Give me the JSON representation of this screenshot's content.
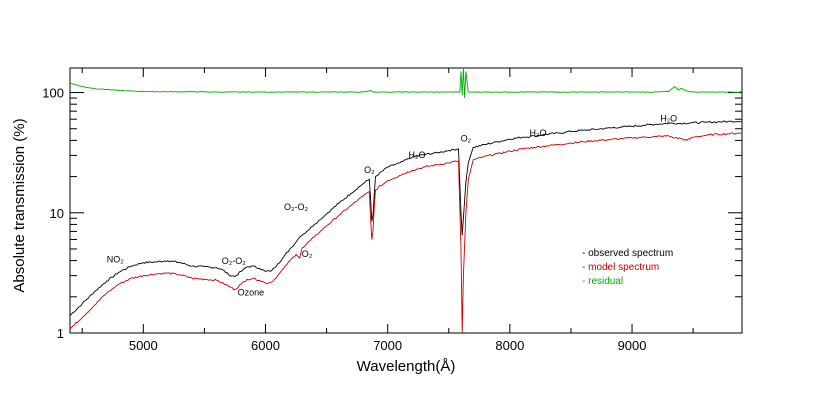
{
  "chart_data": {
    "type": "line",
    "xlabel": "Wavelength(Å)",
    "ylabel": "Absolute transmission (%)",
    "xlim": [
      4400,
      9900
    ],
    "ylim": [
      1,
      160
    ],
    "yscale": "log",
    "x_ticks": [
      5000,
      6000,
      7000,
      8000,
      9000
    ],
    "y_ticks": [
      1,
      10,
      100
    ],
    "x_tick_labels": [
      "5000",
      "6000",
      "7000",
      "8000",
      "9000"
    ],
    "y_tick_labels": [
      "1",
      "10",
      "100"
    ],
    "legend": {
      "position": "lower-right",
      "entries": [
        {
          "text": "- observed spectrum",
          "color": "#000000"
        },
        {
          "text": "- model spectrum",
          "color": "#cc0000"
        },
        {
          "text": "- residual",
          "color": "#00aa00"
        }
      ]
    },
    "series": [
      {
        "name": "observed spectrum",
        "color": "#000000",
        "points": [
          [
            4400,
            1.4
          ],
          [
            4500,
            1.75
          ],
          [
            4600,
            2.2
          ],
          [
            4700,
            2.7
          ],
          [
            4800,
            3.2
          ],
          [
            4900,
            3.6
          ],
          [
            5000,
            3.85
          ],
          [
            5100,
            3.9
          ],
          [
            5200,
            4.0
          ],
          [
            5300,
            3.85
          ],
          [
            5400,
            3.6
          ],
          [
            5500,
            3.55
          ],
          [
            5600,
            3.5
          ],
          [
            5650,
            3.35
          ],
          [
            5700,
            3.05
          ],
          [
            5750,
            2.95
          ],
          [
            5800,
            3.25
          ],
          [
            5850,
            3.55
          ],
          [
            5900,
            3.6
          ],
          [
            5950,
            3.45
          ],
          [
            6000,
            3.25
          ],
          [
            6050,
            3.3
          ],
          [
            6100,
            3.75
          ],
          [
            6150,
            4.3
          ],
          [
            6200,
            5.0
          ],
          [
            6250,
            5.7
          ],
          [
            6280,
            6.3
          ],
          [
            6300,
            6.5
          ],
          [
            6400,
            8.0
          ],
          [
            6500,
            9.8
          ],
          [
            6600,
            12.0
          ],
          [
            6700,
            14.5
          ],
          [
            6800,
            17.5
          ],
          [
            6850,
            19.0
          ],
          [
            6860,
            13.0
          ],
          [
            6870,
            8.5
          ],
          [
            6880,
            9.5
          ],
          [
            6890,
            14.0
          ],
          [
            6900,
            20.0
          ],
          [
            7000,
            24.0
          ],
          [
            7100,
            26.0
          ],
          [
            7200,
            29.0
          ],
          [
            7300,
            30.5
          ],
          [
            7400,
            31.5
          ],
          [
            7500,
            33.0
          ],
          [
            7580,
            34.0
          ],
          [
            7600,
            10.0
          ],
          [
            7610,
            6.5
          ],
          [
            7620,
            9.0
          ],
          [
            7640,
            18.0
          ],
          [
            7660,
            26.0
          ],
          [
            7700,
            35.0
          ],
          [
            7800,
            37.0
          ],
          [
            7900,
            39.0
          ],
          [
            8000,
            41.0
          ],
          [
            8100,
            42.5
          ],
          [
            8200,
            43.5
          ],
          [
            8300,
            45.0
          ],
          [
            8400,
            46.0
          ],
          [
            8500,
            47.5
          ],
          [
            8600,
            48.5
          ],
          [
            8700,
            49.5
          ],
          [
            8800,
            50.5
          ],
          [
            8900,
            51.5
          ],
          [
            9000,
            52.5
          ],
          [
            9100,
            53.5
          ],
          [
            9200,
            54.5
          ],
          [
            9300,
            55.5
          ],
          [
            9400,
            55.5
          ],
          [
            9500,
            56.0
          ],
          [
            9600,
            56.5
          ],
          [
            9700,
            57.0
          ],
          [
            9800,
            57.5
          ],
          [
            9900,
            58.0
          ]
        ]
      },
      {
        "name": "model spectrum",
        "color": "#cc0000",
        "points": [
          [
            4400,
            1.08
          ],
          [
            4500,
            1.35
          ],
          [
            4600,
            1.7
          ],
          [
            4700,
            2.15
          ],
          [
            4800,
            2.55
          ],
          [
            4900,
            2.85
          ],
          [
            5000,
            3.0
          ],
          [
            5100,
            3.1
          ],
          [
            5200,
            3.15
          ],
          [
            5300,
            3.05
          ],
          [
            5400,
            2.85
          ],
          [
            5500,
            2.8
          ],
          [
            5600,
            2.75
          ],
          [
            5700,
            2.45
          ],
          [
            5750,
            2.3
          ],
          [
            5800,
            2.55
          ],
          [
            5850,
            2.8
          ],
          [
            5900,
            2.85
          ],
          [
            5950,
            2.75
          ],
          [
            6000,
            2.6
          ],
          [
            6050,
            2.65
          ],
          [
            6100,
            3.0
          ],
          [
            6150,
            3.45
          ],
          [
            6200,
            4.0
          ],
          [
            6250,
            4.5
          ],
          [
            6280,
            4.2
          ],
          [
            6300,
            5.1
          ],
          [
            6400,
            6.3
          ],
          [
            6500,
            7.8
          ],
          [
            6600,
            9.5
          ],
          [
            6700,
            11.5
          ],
          [
            6800,
            13.8
          ],
          [
            6850,
            15.0
          ],
          [
            6860,
            9.0
          ],
          [
            6870,
            6.0
          ],
          [
            6880,
            7.0
          ],
          [
            6890,
            11.0
          ],
          [
            6900,
            15.5
          ],
          [
            7000,
            18.5
          ],
          [
            7100,
            20.5
          ],
          [
            7200,
            22.5
          ],
          [
            7300,
            24.0
          ],
          [
            7400,
            25.0
          ],
          [
            7500,
            26.0
          ],
          [
            7580,
            27.0
          ],
          [
            7600,
            5.0
          ],
          [
            7610,
            1.0
          ],
          [
            7620,
            3.0
          ],
          [
            7640,
            10.0
          ],
          [
            7660,
            19.0
          ],
          [
            7700,
            27.5
          ],
          [
            7800,
            29.5
          ],
          [
            7900,
            31.0
          ],
          [
            8000,
            32.5
          ],
          [
            8100,
            34.0
          ],
          [
            8200,
            35.0
          ],
          [
            8300,
            36.0
          ],
          [
            8400,
            37.0
          ],
          [
            8500,
            38.0
          ],
          [
            8600,
            39.0
          ],
          [
            8700,
            39.8
          ],
          [
            8800,
            40.5
          ],
          [
            8900,
            41.2
          ],
          [
            9000,
            42.0
          ],
          [
            9100,
            42.5
          ],
          [
            9200,
            43.0
          ],
          [
            9300,
            43.5
          ],
          [
            9350,
            42.0
          ],
          [
            9400,
            41.5
          ],
          [
            9450,
            40.0
          ],
          [
            9500,
            42.5
          ],
          [
            9600,
            44.0
          ],
          [
            9700,
            45.0
          ],
          [
            9800,
            45.5
          ],
          [
            9900,
            46.0
          ]
        ]
      },
      {
        "name": "residual",
        "color": "#00aa00",
        "points": [
          [
            4400,
            120
          ],
          [
            4500,
            112
          ],
          [
            4600,
            108
          ],
          [
            4700,
            106
          ],
          [
            4800,
            104
          ],
          [
            4900,
            103
          ],
          [
            5000,
            102
          ],
          [
            5200,
            101.5
          ],
          [
            5400,
            101.5
          ],
          [
            5600,
            101
          ],
          [
            5800,
            101
          ],
          [
            6000,
            101
          ],
          [
            6200,
            101
          ],
          [
            6400,
            101
          ],
          [
            6600,
            101
          ],
          [
            6800,
            101
          ],
          [
            6860,
            104
          ],
          [
            6880,
            101
          ],
          [
            7000,
            101
          ],
          [
            7200,
            101
          ],
          [
            7400,
            101
          ],
          [
            7550,
            101
          ],
          [
            7590,
            101
          ],
          [
            7600,
            150
          ],
          [
            7610,
            95
          ],
          [
            7620,
            160
          ],
          [
            7630,
            90
          ],
          [
            7640,
            150
          ],
          [
            7660,
            101
          ],
          [
            7800,
            101
          ],
          [
            8000,
            101
          ],
          [
            8200,
            101
          ],
          [
            8400,
            101
          ],
          [
            8600,
            101
          ],
          [
            8800,
            101
          ],
          [
            9000,
            101
          ],
          [
            9200,
            101
          ],
          [
            9300,
            102
          ],
          [
            9350,
            112
          ],
          [
            9380,
            105
          ],
          [
            9400,
            108
          ],
          [
            9450,
            103
          ],
          [
            9500,
            101
          ],
          [
            9600,
            101
          ],
          [
            9700,
            101
          ],
          [
            9800,
            101
          ],
          [
            9900,
            101
          ]
        ]
      }
    ],
    "annotations": [
      {
        "id": "no2",
        "text": "NO₂",
        "x": 4770,
        "y": 3.85
      },
      {
        "id": "o2o2-1",
        "text": "O₂-O₂",
        "x": 5740,
        "y": 3.75
      },
      {
        "id": "ozone",
        "text": "Ozone",
        "x": 5880,
        "y": 2.05
      },
      {
        "id": "o2o2-2",
        "text": "O₂-O₂",
        "x": 6250,
        "y": 10.5
      },
      {
        "id": "o2-1",
        "text": "O₂",
        "x": 6340,
        "y": 4.3
      },
      {
        "id": "o2-2",
        "text": "O₂",
        "x": 6850,
        "y": 21.5
      },
      {
        "id": "h2o-1",
        "text": "H₂O",
        "x": 7240,
        "y": 28.5
      },
      {
        "id": "o2-3",
        "text": "O₂",
        "x": 7640,
        "y": 39.0
      },
      {
        "id": "h2o-2",
        "text": "H₂O",
        "x": 8230,
        "y": 43.5
      },
      {
        "id": "h2o-3",
        "text": "H₂O",
        "x": 9300,
        "y": 57.5
      }
    ]
  }
}
